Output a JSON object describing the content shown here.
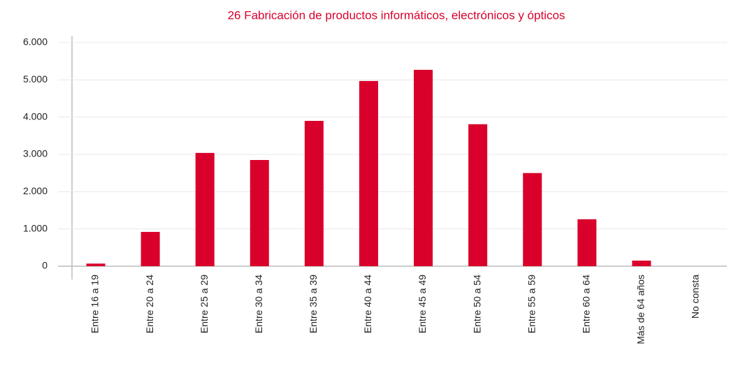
{
  "chart_data": {
    "type": "bar",
    "title": "26 Fabricación de productos informáticos, electrónicos y ópticos",
    "categories": [
      "Entre 16 a 19",
      "Entre 20 a 24",
      "Entre 25 a 29",
      "Entre 30 a 34",
      "Entre 35 a 39",
      "Entre 40 a 44",
      "Entre 45 a 49",
      "Entre 50 a 54",
      "Entre 55 a 59",
      "Entre 60 a 64",
      "Más de 64 años",
      "No consta"
    ],
    "values": [
      70,
      920,
      3040,
      2850,
      3900,
      4970,
      5270,
      3810,
      2500,
      1260,
      150,
      0
    ],
    "color": "#d9002b",
    "ylim": [
      0,
      6000
    ],
    "yticks": [
      {
        "value": 0,
        "label": "0"
      },
      {
        "value": 1000,
        "label": "1.000"
      },
      {
        "value": 2000,
        "label": "2.000"
      },
      {
        "value": 3000,
        "label": "3.000"
      },
      {
        "value": 4000,
        "label": "4.000"
      },
      {
        "value": 5000,
        "label": "5.000"
      },
      {
        "value": 6000,
        "label": "6.000"
      }
    ],
    "grid": true
  }
}
